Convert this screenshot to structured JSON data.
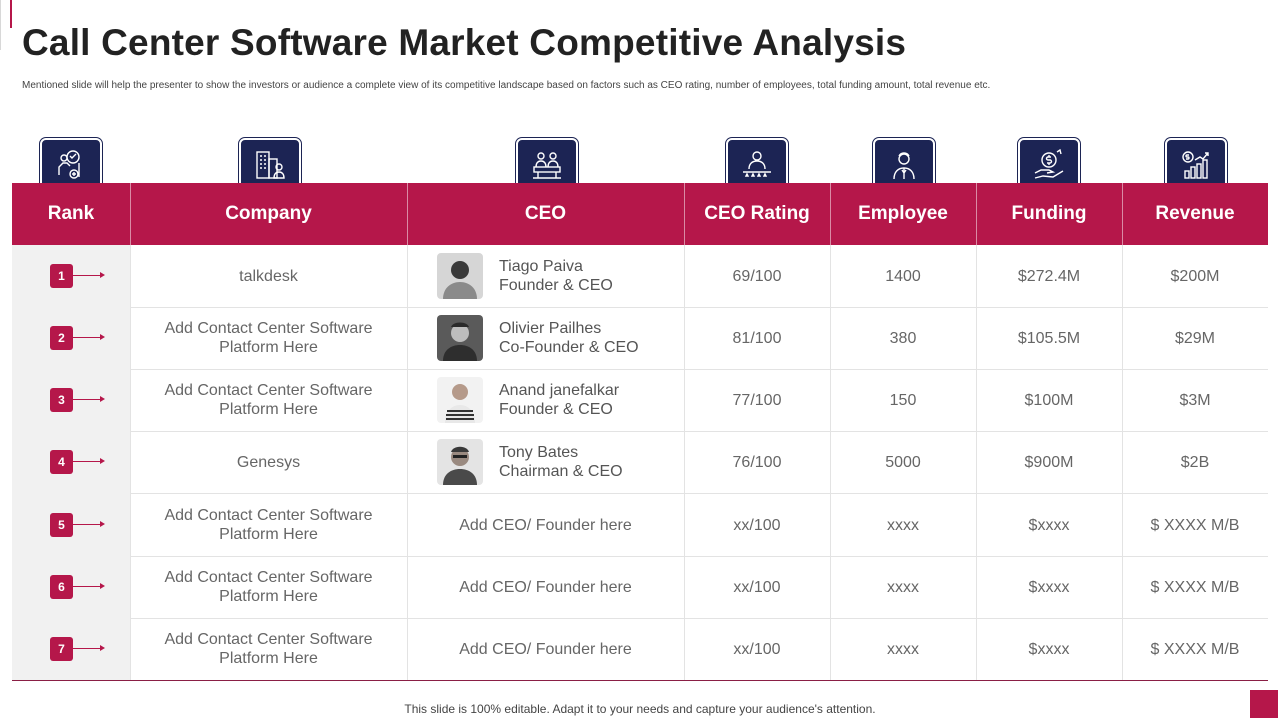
{
  "title": "Call Center Software Market Competitive Analysis",
  "subtitle": "Mentioned slide will help the presenter to show the investors or audience a complete view of its competitive landscape based on factors such as CEO rating, number of employees, total funding amount, total revenue etc.",
  "columns": [
    "Rank",
    "Company",
    "CEO",
    "CEO Rating",
    "Employee",
    "Funding",
    "Revenue"
  ],
  "icons": [
    "rank-award-icon",
    "company-buildings-icon",
    "ceo-meeting-icon",
    "ceo-rating-stars-icon",
    "employee-person-icon",
    "funding-money-hand-icon",
    "revenue-growth-chart-icon"
  ],
  "rows": [
    {
      "rank": "1",
      "company": "talkdesk",
      "ceo_name": "Tiago Paiva",
      "ceo_title": "Founder & CEO",
      "ceo_placeholder": "",
      "rating": "69/100",
      "employee": "1400",
      "funding": "$272.4M",
      "revenue": "$200M"
    },
    {
      "rank": "2",
      "company": "Add Contact Center Software Platform Here",
      "ceo_name": "Olivier Pailhes",
      "ceo_title": "Co-Founder & CEO",
      "ceo_placeholder": "",
      "rating": "81/100",
      "employee": "380",
      "funding": "$105.5M",
      "revenue": "$29M"
    },
    {
      "rank": "3",
      "company": "Add Contact Center Software Platform Here",
      "ceo_name": "Anand janefalkar",
      "ceo_title": "Founder & CEO",
      "ceo_placeholder": "",
      "rating": "77/100",
      "employee": "150",
      "funding": "$100M",
      "revenue": "$3M"
    },
    {
      "rank": "4",
      "company": "Genesys",
      "ceo_name": "Tony Bates",
      "ceo_title": "Chairman & CEO",
      "ceo_placeholder": "",
      "rating": "76/100",
      "employee": "5000",
      "funding": "$900M",
      "revenue": "$2B"
    },
    {
      "rank": "5",
      "company": "Add Contact Center Software Platform Here",
      "ceo_name": "",
      "ceo_title": "",
      "ceo_placeholder": "Add CEO/ Founder here",
      "rating": "xx/100",
      "employee": "xxxx",
      "funding": "$xxxx",
      "revenue": "$ XXXX M/B"
    },
    {
      "rank": "6",
      "company": "Add Contact Center Software Platform Here",
      "ceo_name": "",
      "ceo_title": "",
      "ceo_placeholder": "Add CEO/ Founder here",
      "rating": "xx/100",
      "employee": "xxxx",
      "funding": "$xxxx",
      "revenue": "$ XXXX M/B"
    },
    {
      "rank": "7",
      "company": "Add Contact Center Software Platform Here",
      "ceo_name": "",
      "ceo_title": "",
      "ceo_placeholder": "Add CEO/ Founder here",
      "rating": "xx/100",
      "employee": "xxxx",
      "funding": "$xxxx",
      "revenue": "$ XXXX M/B"
    }
  ],
  "footer": "This slide is 100% editable. Adapt it to your needs and capture your audience's attention.",
  "colors": {
    "accent": "#b5174a",
    "icon_bg": "#1c2454"
  }
}
